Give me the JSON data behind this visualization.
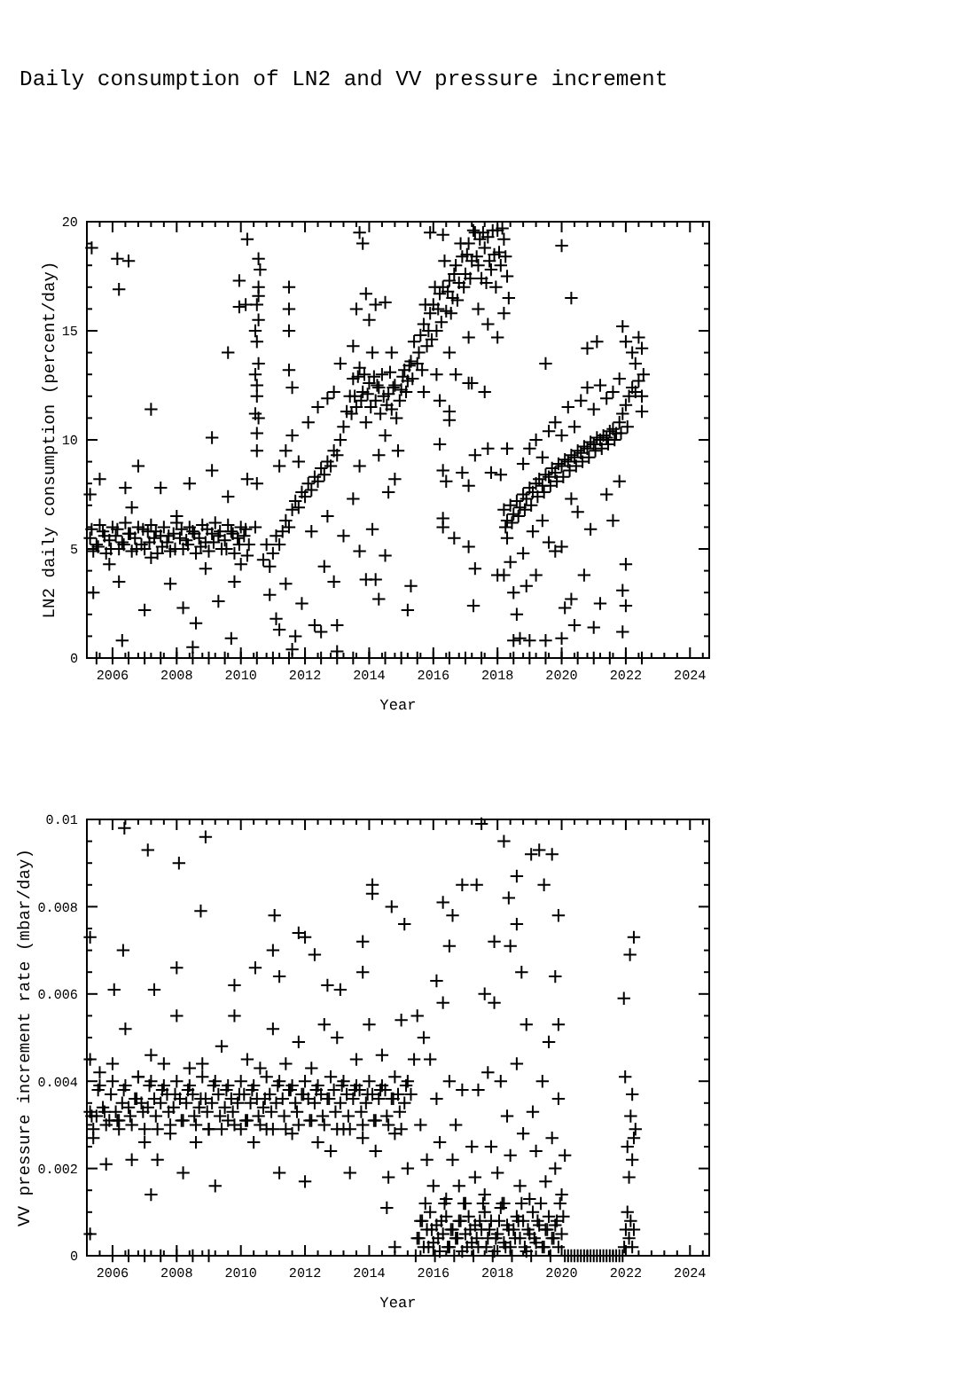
{
  "chart_data": [
    {
      "type": "scatter",
      "title": "Daily consumption of LN2 and VV pressure increment",
      "xlabel": "Year",
      "ylabel": "LN2 daily consumption (percent/day)",
      "marker": "cross",
      "color": "#000000",
      "xlim": [
        2005.2,
        2024.6
      ],
      "xticks": [
        {
          "value": 2005.6,
          "label": null
        },
        2006,
        {
          "value": 2006.4,
          "label": null
        },
        {
          "value": 2006.8,
          "label": null
        },
        {
          "value": 2007.2,
          "label": null
        },
        {
          "value": 2007.6,
          "label": null
        },
        2008,
        {
          "value": 2008.4,
          "label": null
        },
        {
          "value": 2008.8,
          "label": null
        },
        {
          "value": 2009.2,
          "label": null
        },
        {
          "value": 2009.6,
          "label": null
        },
        2010,
        {
          "value": 2010.4,
          "label": null
        },
        {
          "value": 2010.8,
          "label": null
        },
        {
          "value": 2011.2,
          "label": null
        },
        {
          "value": 2011.6,
          "label": null
        },
        2012,
        {
          "value": 2012.4,
          "label": null
        },
        {
          "value": 2012.8,
          "label": null
        },
        {
          "value": 2013.2,
          "label": null
        },
        {
          "value": 2013.6,
          "label": null
        },
        2014,
        {
          "value": 2014.4,
          "label": null
        },
        {
          "value": 2014.8,
          "label": null
        },
        {
          "value": 2015.2,
          "label": null
        },
        {
          "value": 2015.6,
          "label": null
        },
        2016,
        {
          "value": 2016.4,
          "label": null
        },
        {
          "value": 2016.8,
          "label": null
        },
        {
          "value": 2017.2,
          "label": null
        },
        {
          "value": 2017.6,
          "label": null
        },
        2018,
        {
          "value": 2018.4,
          "label": null
        },
        {
          "value": 2018.8,
          "label": null
        },
        {
          "value": 2019.2,
          "label": null
        },
        {
          "value": 2019.6,
          "label": null
        },
        2020,
        {
          "value": 2020.4,
          "label": null
        },
        {
          "value": 2020.8,
          "label": null
        },
        {
          "value": 2021.2,
          "label": null
        },
        {
          "value": 2021.6,
          "label": null
        },
        2022,
        {
          "value": 2022.4,
          "label": null
        },
        {
          "value": 2022.8,
          "label": null
        },
        {
          "value": 2023.2,
          "label": null
        },
        {
          "value": 2023.6,
          "label": null
        },
        2024,
        {
          "value": 2024.4,
          "label": null
        }
      ],
      "ylim": [
        0,
        20
      ],
      "yticks": [
        0,
        {
          "value": 1,
          "label": null
        },
        {
          "value": 2,
          "label": null
        },
        {
          "value": 3,
          "label": null
        },
        {
          "value": 4,
          "label": null
        },
        5,
        {
          "value": 6,
          "label": null
        },
        {
          "value": 7,
          "label": null
        },
        {
          "value": 8,
          "label": null
        },
        {
          "value": 9,
          "label": null
        },
        10,
        {
          "value": 11,
          "label": null
        },
        {
          "value": 12,
          "label": null
        },
        {
          "value": 13,
          "label": null
        },
        {
          "value": 14,
          "label": null
        },
        15,
        {
          "value": 16,
          "label": null
        },
        {
          "value": 17,
          "label": null
        },
        {
          "value": 18,
          "label": null
        },
        {
          "value": 19,
          "label": null
        },
        20
      ],
      "x": [
        2005.3,
        2005.5,
        2005.7,
        2005.9,
        2006.1,
        2006.3,
        2006.5,
        2006.7,
        2006.9,
        2007.1,
        2007.3,
        2007.5,
        2007.7,
        2007.9,
        2008.1,
        2008.3,
        2008.5,
        2008.7,
        2008.9,
        2009.1,
        2009.3,
        2009.5,
        2009.7,
        2009.9,
        2010.1,
        2010.25,
        2005.4,
        2005.6,
        2005.8,
        2006.0,
        2006.2,
        2006.4,
        2006.6,
        2006.8,
        2007.0,
        2007.2,
        2007.4,
        2007.6,
        2007.8,
        2008.0,
        2008.2,
        2008.4,
        2008.6,
        2008.8,
        2009.0,
        2009.2,
        2009.4,
        2009.6,
        2009.8,
        2010.0,
        2010.2,
        2005.3,
        2005.4,
        2005.6,
        2005.9,
        2006.2,
        2006.4,
        2006.6,
        2006.8,
        2007.0,
        2007.2,
        2007.5,
        2007.8,
        2008.0,
        2008.2,
        2008.4,
        2008.6,
        2008.9,
        2009.1,
        2009.3,
        2009.6,
        2009.8,
        2010.0,
        2010.2,
        2006.3,
        2008.5,
        2009.7,
        2005.35,
        2006.15,
        2006.2,
        2006.5,
        2007.2,
        2009.1,
        2009.95,
        2009.6,
        2009.95,
        2010.2,
        2010.15,
        2010.45,
        2010.5,
        2010.5,
        2010.55,
        2010.5,
        2010.55,
        2010.5,
        2010.55,
        2010.5,
        2010.55,
        2010.6,
        2010.55,
        2010.45,
        2010.5,
        2010.45,
        2010.55,
        2010.5,
        2010.45,
        2010.7,
        2010.8,
        2010.9,
        2011.0,
        2011.1,
        2011.2,
        2011.3,
        2011.4,
        2011.5,
        2011.6,
        2011.7,
        2011.8,
        2011.9,
        2012.0,
        2012.1,
        2012.2,
        2012.3,
        2012.4,
        2012.5,
        2012.6,
        2012.7,
        2012.8,
        2012.9,
        2013.0,
        2013.1,
        2013.2,
        2013.3,
        2011.2,
        2011.4,
        2011.6,
        2011.8,
        2012.1,
        2012.4,
        2012.7,
        2012.9,
        2013.1,
        2011.5,
        2011.5,
        2011.5,
        2011.5,
        2011.6,
        2010.9,
        2011.1,
        2011.2,
        2011.4,
        2011.6,
        2011.7,
        2011.9,
        2012.2,
        2012.3,
        2012.5,
        2012.7,
        2012.9,
        2013.0,
        2013.0,
        2013.2,
        2012.6,
        2013.4,
        2013.5,
        2013.6,
        2013.7,
        2013.8,
        2013.9,
        2014.0,
        2014.1,
        2014.2,
        2014.3,
        2014.4,
        2014.5,
        2014.6,
        2014.7,
        2014.8,
        2014.9,
        2015.0,
        2015.1,
        2015.2,
        2015.3,
        2015.4,
        2013.5,
        2014.0,
        2014.3,
        2014.7,
        2013.7,
        2014.5,
        2013.6,
        2013.9,
        2014.2,
        2013.45,
        2013.55,
        2013.65,
        2013.75,
        2013.85,
        2013.95,
        2014.05,
        2014.15,
        2014.25,
        2014.35,
        2014.45,
        2014.55,
        2014.65,
        2014.75,
        2014.85,
        2014.95,
        2015.05,
        2015.15,
        2015.25,
        2015.35,
        2013.5,
        2013.7,
        2013.9,
        2014.1,
        2014.2,
        2014.3,
        2014.5,
        2014.6,
        2014.8,
        2015.2,
        2015.3,
        2013.7,
        2013.8,
        2015.5,
        2015.6,
        2015.7,
        2015.8,
        2015.9,
        2016.0,
        2016.1,
        2016.2,
        2016.3,
        2016.4,
        2016.5,
        2016.6,
        2016.7,
        2016.8,
        2016.9,
        2017.0,
        2017.1,
        2017.2,
        2017.3,
        2017.4,
        2017.5,
        2017.6,
        2017.7,
        2017.8,
        2017.9,
        2018.0,
        2018.1,
        2018.2,
        2018.3,
        2018.35,
        2015.7,
        2015.9,
        2016.1,
        2016.3,
        2016.5,
        2016.7,
        2017.1,
        2017.4,
        2017.7,
        2018.0,
        2018.2,
        2016.2,
        2015.55,
        2015.65,
        2015.75,
        2015.85,
        2015.95,
        2016.05,
        2016.15,
        2016.25,
        2016.35,
        2016.45,
        2016.55,
        2016.65,
        2016.75,
        2016.85,
        2016.95,
        2017.05,
        2017.15,
        2017.25,
        2017.35,
        2017.45,
        2017.55,
        2017.65,
        2017.75,
        2017.85,
        2017.95,
        2018.05,
        2018.15,
        2018.25,
        2016.2,
        2016.3,
        2016.3,
        2016.3,
        2016.4,
        2016.65,
        2016.9,
        2017.1,
        2017.1,
        2017.3,
        2017.25,
        2017.3,
        2017.7,
        2017.8,
        2018.0,
        2017.1,
        2017.2,
        2017.6,
        2016.5,
        2016.5,
        2018.2,
        2018.3,
        2018.4,
        2018.5,
        2018.6,
        2018.7,
        2018.8,
        2018.9,
        2019.0,
        2019.1,
        2019.2,
        2019.3,
        2019.4,
        2019.5,
        2019.6,
        2019.7,
        2019.8,
        2019.9,
        2020.0,
        2020.1,
        2020.2,
        2020.3,
        2020.4,
        2020.5,
        2020.6,
        2020.7,
        2020.8,
        2020.9,
        2021.0,
        2021.1,
        2021.2,
        2021.3,
        2021.4,
        2021.5,
        2021.6,
        2021.7,
        2021.8,
        2021.9,
        2022.0,
        2022.1,
        2022.2,
        2022.3,
        2022.4,
        2022.5,
        2022.55,
        2018.25,
        2018.45,
        2018.65,
        2018.85,
        2019.05,
        2019.25,
        2019.45,
        2019.65,
        2019.85,
        2020.05,
        2020.25,
        2020.45,
        2020.65,
        2020.85,
        2021.05,
        2021.25,
        2021.45,
        2021.65,
        2021.85,
        2022.05,
        2018.8,
        2019.0,
        2019.2,
        2019.4,
        2019.6,
        2019.8,
        2020.0,
        2020.2,
        2020.4,
        2020.6,
        2020.8,
        2021.0,
        2021.2,
        2021.4,
        2021.6,
        2021.8,
        2022.0,
        2022.2,
        2022.3,
        2022.4,
        2022.5,
        2022.5,
        2021.1,
        2020.8,
        2021.9,
        2018.3,
        2018.4,
        2018.5,
        2018.6,
        2018.5,
        2018.7,
        2018.8,
        2018.9,
        2019.1,
        2019.2,
        2019.4,
        2019.6,
        2019.8,
        2020.0,
        2020.1,
        2020.3,
        2020.4,
        2020.3,
        2020.5,
        2020.7,
        2020.9,
        2021.0,
        2021.2,
        2021.4,
        2021.6,
        2021.8,
        2021.9,
        2022.0,
        2021.9,
        2022.0,
        2019.5,
        2020.0,
        2020.3,
        2018.3,
        2018.1,
        2018.2,
        2019.0,
        2019.5,
        2020.0,
        2005.5,
        2006.0,
        2006.5,
        2007.0,
        2007.5,
        2008.0,
        2008.5,
        2009.0,
        2009.5,
        2010.0,
        2010.5,
        2011.0,
        2011.5,
        2012.0,
        2012.5,
        2013.0,
        2013.5,
        2014.0,
        2014.5,
        2015.0,
        2015.5,
        2016.0,
        2016.5,
        2017.0,
        2017.5,
        2018.0,
        2018.5,
        2019.0,
        2019.5,
        2020.0,
        2020.5,
        2021.0,
        2021.5,
        2022.0,
        2022.5,
        2005.35,
        2005.55,
        2005.75,
        2005.95,
        2006.15,
        2006.35,
        2006.55,
        2006.75,
        2006.95,
        2007.15,
        2007.35,
        2007.55,
        2007.75,
        2007.95,
        2008.15,
        2008.35,
        2008.55,
        2008.75,
        2008.95,
        2009.15,
        2009.35,
        2009.55,
        2009.75,
        2009.95,
        2010.15
      ],
      "values": [
        5.5,
        5.2,
        5.8,
        5.4,
        5.6,
        5.3,
        5.7,
        5.5,
        5.2,
        5.8,
        5.5,
        5.6,
        5.3,
        5.7,
        5.5,
        5.4,
        5.8,
        5.5,
        5.3,
        5.7,
        5.6,
        5.4,
        5.8,
        5.5,
        5.6,
        5.2,
        4.9,
        6.1,
        4.8,
        6.0,
        5.0,
        6.2,
        4.9,
        6.0,
        5.0,
        6.1,
        4.8,
        6.0,
        4.9,
        6.2,
        5.0,
        6.0,
        4.8,
        6.1,
        4.9,
        6.2,
        5.0,
        6.1,
        4.8,
        6.0,
        4.7,
        7.5,
        3.0,
        8.2,
        4.3,
        3.5,
        7.8,
        6.9,
        8.8,
        2.2,
        4.6,
        7.8,
        3.4,
        6.5,
        2.3,
        8.0,
        1.6,
        4.1,
        8.6,
        2.6,
        7.4,
        3.5,
        4.3,
        8.2,
        0.8,
        0.5,
        0.9,
        18.8,
        18.3,
        16.9,
        18.2,
        11.4,
        10.1,
        16.1,
        14.0,
        17.3,
        19.2,
        16.2,
        6.0,
        8.0,
        9.5,
        11.0,
        12.5,
        13.5,
        14.5,
        15.5,
        16.2,
        17.0,
        17.8,
        18.3,
        11.2,
        10.3,
        15.0,
        16.6,
        12.0,
        13.0,
        4.5,
        5.2,
        4.2,
        4.8,
        5.6,
        5.2,
        5.8,
        6.3,
        6.0,
        6.8,
        7.2,
        6.9,
        7.6,
        7.4,
        8.0,
        7.7,
        8.3,
        8.1,
        8.7,
        8.4,
        9.0,
        8.8,
        9.5,
        9.3,
        10.0,
        10.6,
        11.3,
        8.8,
        9.5,
        10.2,
        9.0,
        10.8,
        11.5,
        11.9,
        12.2,
        13.5,
        17.0,
        16.0,
        15.0,
        13.2,
        12.4,
        2.9,
        1.8,
        1.3,
        3.4,
        0.4,
        1.0,
        2.5,
        5.8,
        1.5,
        1.2,
        6.5,
        3.5,
        1.5,
        0.3,
        5.6,
        4.2,
        12.0,
        12.8,
        11.5,
        13.3,
        12.2,
        10.8,
        12.6,
        14.0,
        11.8,
        12.4,
        13.0,
        10.2,
        12.1,
        11.4,
        12.5,
        9.5,
        12.3,
        13.2,
        12.7,
        13.6,
        14.5,
        14.3,
        15.5,
        9.3,
        14.0,
        8.8,
        16.3,
        16.0,
        16.7,
        16.2,
        11.2,
        12.0,
        12.9,
        11.8,
        13.0,
        12.1,
        11.5,
        12.9,
        12.5,
        11.2,
        12.0,
        11.6,
        13.1,
        12.4,
        11.0,
        11.8,
        12.9,
        12.2,
        13.4,
        12.8,
        7.3,
        4.9,
        3.6,
        5.9,
        3.6,
        2.7,
        4.7,
        7.6,
        8.2,
        2.2,
        3.3,
        19.5,
        19.0,
        13.5,
        14.8,
        15.3,
        14.3,
        15.8,
        16.2,
        15.0,
        16.7,
        17.0,
        15.9,
        17.3,
        16.5,
        18.0,
        17.2,
        18.4,
        17.6,
        19.0,
        18.2,
        19.5,
        18.0,
        17.4,
        18.8,
        19.3,
        17.8,
        18.5,
        19.6,
        18.0,
        19.2,
        17.5,
        16.5,
        12.2,
        19.5,
        13.0,
        19.4,
        14.0,
        13.0,
        14.7,
        16.0,
        15.3,
        14.7,
        15.8,
        11.8,
        14.0,
        13.2,
        16.2,
        15.0,
        14.6,
        17.0,
        16.0,
        15.4,
        18.2,
        16.8,
        15.8,
        17.6,
        16.4,
        19.0,
        17.0,
        18.5,
        17.4,
        19.6,
        18.4,
        19.2,
        19.5,
        17.2,
        18.2,
        19.6,
        17.0,
        18.6,
        19.7,
        18.4,
        9.8,
        8.6,
        6.4,
        6.0,
        8.1,
        5.5,
        8.5,
        7.9,
        5.1,
        4.1,
        2.4,
        9.3,
        9.6,
        8.5,
        3.8,
        12.6,
        12.6,
        12.2,
        11.3,
        10.9,
        6.8,
        6.3,
        7.0,
        6.6,
        7.2,
        6.9,
        7.5,
        7.3,
        7.8,
        7.6,
        8.0,
        8.2,
        7.9,
        8.4,
        8.3,
        8.7,
        8.5,
        8.9,
        8.8,
        9.1,
        9.0,
        9.3,
        9.2,
        9.5,
        9.4,
        9.7,
        9.6,
        9.9,
        9.8,
        10.1,
        10.0,
        10.2,
        10.1,
        10.4,
        10.5,
        10.3,
        10.8,
        11.2,
        11.6,
        12.0,
        12.4,
        12.2,
        12.7,
        12.0,
        13.0,
        6.0,
        6.2,
        6.5,
        6.8,
        7.0,
        7.4,
        7.6,
        7.9,
        8.1,
        8.3,
        8.6,
        8.8,
        9.0,
        9.2,
        9.5,
        9.6,
        9.8,
        10.0,
        10.3,
        10.6,
        8.9,
        9.6,
        10.0,
        9.2,
        10.4,
        10.8,
        10.2,
        11.5,
        10.6,
        11.8,
        12.4,
        11.4,
        12.5,
        11.9,
        12.2,
        12.8,
        14.5,
        14.0,
        13.5,
        14.7,
        14.2,
        11.3,
        14.5,
        14.2,
        15.2,
        5.5,
        4.4,
        3.0,
        2.0,
        0.8,
        0.9,
        4.8,
        3.3,
        5.8,
        3.8,
        6.3,
        5.3,
        4.9,
        5.1,
        2.3,
        7.3,
        1.5,
        2.7,
        6.7,
        3.8,
        5.9,
        1.4,
        2.5,
        7.5,
        6.3,
        8.1,
        3.1,
        2.4,
        1.2,
        4.3,
        13.5,
        18.9,
        16.5,
        9.6,
        8.4,
        3.8,
        0.8,
        0.8,
        0.9,
        0,
        0,
        0,
        0,
        0,
        0,
        0,
        0,
        0,
        0,
        0,
        0,
        0,
        0,
        0,
        0,
        0,
        0,
        0,
        0,
        0,
        0,
        0,
        0,
        0,
        0,
        0,
        0,
        0,
        0,
        0,
        0,
        0,
        0,
        0,
        5.9,
        5.1,
        5.6,
        5.0,
        5.9,
        5.2,
        5.7,
        5.0,
        5.9,
        5.3,
        5.8,
        5.1,
        5.6,
        5.0,
        5.9,
        5.2,
        5.7,
        5.1,
        5.9,
        5.3,
        5.8,
        5.0,
        5.7,
        5.2,
        5.9
      ]
    },
    {
      "type": "scatter",
      "xlabel": "Year",
      "ylabel": "VV pressure increment rate (mbar/day)",
      "marker": "cross",
      "color": "#000000",
      "xlim": [
        2005.2,
        2024.6
      ],
      "xticks": [
        {
          "value": 2005.6,
          "label": null
        },
        2006,
        {
          "value": 2006.4,
          "label": null
        },
        {
          "value": 2006.8,
          "label": null
        },
        {
          "value": 2007.2,
          "label": null
        },
        {
          "value": 2007.6,
          "label": null
        },
        2008,
        {
          "value": 2008.4,
          "label": null
        },
        {
          "value": 2008.8,
          "label": null
        },
        {
          "value": 2009.2,
          "label": null
        },
        {
          "value": 2009.6,
          "label": null
        },
        2010,
        {
          "value": 2010.4,
          "label": null
        },
        {
          "value": 2010.8,
          "label": null
        },
        {
          "value": 2011.2,
          "label": null
        },
        {
          "value": 2011.6,
          "label": null
        },
        2012,
        {
          "value": 2012.4,
          "label": null
        },
        {
          "value": 2012.8,
          "label": null
        },
        {
          "value": 2013.2,
          "label": null
        },
        {
          "value": 2013.6,
          "label": null
        },
        2014,
        {
          "value": 2014.4,
          "label": null
        },
        {
          "value": 2014.8,
          "label": null
        },
        {
          "value": 2015.2,
          "label": null
        },
        {
          "value": 2015.6,
          "label": null
        },
        2016,
        {
          "value": 2016.4,
          "label": null
        },
        {
          "value": 2016.8,
          "label": null
        },
        {
          "value": 2017.2,
          "label": null
        },
        {
          "value": 2017.6,
          "label": null
        },
        2018,
        {
          "value": 2018.4,
          "label": null
        },
        {
          "value": 2018.8,
          "label": null
        },
        {
          "value": 2019.2,
          "label": null
        },
        {
          "value": 2019.6,
          "label": null
        },
        2020,
        {
          "value": 2020.4,
          "label": null
        },
        {
          "value": 2020.8,
          "label": null
        },
        {
          "value": 2021.2,
          "label": null
        },
        {
          "value": 2021.6,
          "label": null
        },
        2022,
        {
          "value": 2022.4,
          "label": null
        },
        {
          "value": 2022.8,
          "label": null
        },
        {
          "value": 2023.2,
          "label": null
        },
        {
          "value": 2023.6,
          "label": null
        },
        2024,
        {
          "value": 2024.4,
          "label": null
        }
      ],
      "ylim": [
        0,
        0.01
      ],
      "yticks": [
        0,
        {
          "value": 0.0005,
          "label": null
        },
        {
          "value": 0.001,
          "label": null
        },
        {
          "value": 0.0015,
          "label": null
        },
        0.002,
        {
          "value": 0.0025,
          "label": null
        },
        {
          "value": 0.003,
          "label": null
        },
        {
          "value": 0.0035,
          "label": null
        },
        0.004,
        {
          "value": 0.0045,
          "label": null
        },
        {
          "value": 0.005,
          "label": null
        },
        {
          "value": 0.0055,
          "label": null
        },
        0.006,
        {
          "value": 0.0065,
          "label": null
        },
        {
          "value": 0.007,
          "label": null
        },
        {
          "value": 0.0075,
          "label": null
        },
        0.008,
        {
          "value": 0.0085,
          "label": null
        },
        {
          "value": 0.009,
          "label": null
        },
        {
          "value": 0.0095,
          "label": null
        },
        0.01
      ],
      "x": [
        2005.3,
        2005.5,
        2005.7,
        2005.9,
        2006.1,
        2006.3,
        2006.5,
        2006.7,
        2006.9,
        2007.1,
        2007.3,
        2007.5,
        2007.7,
        2007.9,
        2008.1,
        2008.3,
        2008.5,
        2008.7,
        2008.9,
        2009.1,
        2009.3,
        2009.5,
        2009.7,
        2009.9,
        2010.1,
        2010.3,
        2010.5,
        2010.7,
        2010.9,
        2011.1,
        2011.3,
        2011.5,
        2011.7,
        2011.9,
        2012.1,
        2012.3,
        2012.5,
        2012.7,
        2012.9,
        2013.1,
        2013.3,
        2013.5,
        2013.7,
        2013.9,
        2014.1,
        2014.3,
        2014.5,
        2014.7,
        2014.9,
        2015.1,
        2015.3,
        2005.4,
        2005.6,
        2005.8,
        2006.0,
        2006.2,
        2006.4,
        2006.6,
        2006.8,
        2007.0,
        2007.2,
        2007.4,
        2007.6,
        2007.8,
        2008.0,
        2008.2,
        2008.4,
        2008.6,
        2008.8,
        2009.0,
        2009.2,
        2009.4,
        2009.6,
        2009.8,
        2010.0,
        2010.2,
        2010.4,
        2010.6,
        2010.8,
        2011.0,
        2011.2,
        2011.4,
        2011.6,
        2011.8,
        2012.0,
        2012.2,
        2012.4,
        2012.6,
        2012.8,
        2013.0,
        2013.2,
        2013.4,
        2013.6,
        2013.8,
        2014.0,
        2014.2,
        2014.4,
        2014.6,
        2014.8,
        2015.0,
        2015.2,
        2005.3,
        2005.4,
        2005.6,
        2005.8,
        2006.0,
        2006.2,
        2006.4,
        2006.6,
        2006.8,
        2007.0,
        2007.2,
        2007.4,
        2007.6,
        2007.8,
        2008.0,
        2008.2,
        2008.4,
        2008.6,
        2008.8,
        2009.0,
        2009.2,
        2009.4,
        2009.6,
        2009.8,
        2010.0,
        2010.2,
        2010.4,
        2010.6,
        2010.8,
        2011.0,
        2011.2,
        2011.4,
        2011.6,
        2011.8,
        2012.0,
        2012.2,
        2012.4,
        2012.6,
        2012.8,
        2013.0,
        2013.2,
        2013.4,
        2013.6,
        2013.8,
        2014.0,
        2014.2,
        2014.4,
        2014.6,
        2014.8,
        2015.0,
        2015.2,
        2015.4,
        2005.3,
        2005.3,
        2006.05,
        2006.37,
        2006.33,
        2007.3,
        2007.1,
        2007.2,
        2008.07,
        2008.0,
        2008.75,
        2008.9,
        2009.8,
        2010.45,
        2011.0,
        2011.05,
        2011.2,
        2011.8,
        2012.0,
        2012.3,
        2012.7,
        2013.1,
        2013.8,
        2013.8,
        2014.1,
        2014.1,
        2014.7,
        2015.1,
        2014.8,
        2014.55,
        2006.0,
        2006.5,
        2007.0,
        2007.5,
        2008.0,
        2008.5,
        2009.0,
        2015.5,
        2015.6,
        2015.7,
        2015.8,
        2015.9,
        2016.0,
        2016.1,
        2016.2,
        2016.3,
        2016.4,
        2016.5,
        2016.6,
        2016.7,
        2016.8,
        2016.9,
        2017.0,
        2017.1,
        2017.2,
        2017.3,
        2017.4,
        2017.5,
        2017.6,
        2017.7,
        2017.8,
        2017.9,
        2018.0,
        2018.1,
        2018.2,
        2018.3,
        2018.4,
        2018.5,
        2018.6,
        2018.7,
        2018.8,
        2018.9,
        2019.0,
        2019.1,
        2019.2,
        2019.3,
        2019.4,
        2019.5,
        2019.6,
        2019.7,
        2019.8,
        2019.9,
        2020.0,
        2020.05,
        2015.45,
        2015.55,
        2015.65,
        2015.75,
        2015.85,
        2015.95,
        2016.05,
        2016.15,
        2016.25,
        2016.35,
        2016.45,
        2016.55,
        2016.65,
        2016.75,
        2016.85,
        2016.95,
        2017.05,
        2017.15,
        2017.25,
        2017.35,
        2017.45,
        2017.55,
        2017.65,
        2017.75,
        2017.85,
        2017.95,
        2018.05,
        2018.15,
        2018.25,
        2018.35,
        2018.45,
        2018.55,
        2018.65,
        2018.75,
        2018.85,
        2018.95,
        2019.05,
        2019.15,
        2019.25,
        2019.35,
        2019.45,
        2019.55,
        2019.65,
        2019.75,
        2019.85,
        2019.95,
        2015.5,
        2015.6,
        2015.7,
        2015.8,
        2015.9,
        2016.0,
        2016.1,
        2016.2,
        2016.3,
        2016.4,
        2016.5,
        2016.6,
        2016.7,
        2016.8,
        2016.9,
        2017.0,
        2017.2,
        2017.3,
        2017.4,
        2017.6,
        2017.7,
        2017.8,
        2017.9,
        2018.0,
        2018.1,
        2018.2,
        2018.3,
        2018.4,
        2018.6,
        2018.7,
        2018.8,
        2018.9,
        2019.0,
        2019.1,
        2019.2,
        2019.4,
        2019.5,
        2019.6,
        2019.7,
        2019.8,
        2019.9,
        2020.0,
        2020.1,
        2016.1,
        2016.3,
        2016.5,
        2016.6,
        2016.9,
        2017.35,
        2017.5,
        2017.6,
        2017.9,
        2018.2,
        2018.35,
        2018.4,
        2018.6,
        2018.6,
        2018.75,
        2019.05,
        2019.3,
        2019.45,
        2019.7,
        2019.8,
        2019.9,
        2019.9,
        2020.1,
        2020.2,
        2020.3,
        2020.4,
        2020.5,
        2020.6,
        2020.7,
        2020.8,
        2020.9,
        2021.0,
        2021.1,
        2021.2,
        2021.3,
        2021.4,
        2021.5,
        2021.6,
        2021.7,
        2021.8,
        2021.9,
        2021.95,
        2022.0,
        2022.05,
        2022.1,
        2022.15,
        2022.2,
        2022.25,
        2022.05,
        2022.1,
        2022.15,
        2022.2,
        2022.25,
        2022.3,
        2021.94,
        2021.98,
        2022.13,
        2022.25,
        2022.2,
        2005.35,
        2005.55,
        2005.75,
        2005.95,
        2006.15,
        2006.35,
        2006.55,
        2006.75,
        2006.95,
        2007.15,
        2007.35,
        2007.55,
        2007.75,
        2007.95,
        2008.15,
        2008.35,
        2008.55,
        2008.75,
        2008.95,
        2009.15,
        2009.35,
        2009.55,
        2009.75,
        2009.95,
        2010.15,
        2010.35,
        2010.55,
        2010.75,
        2010.95,
        2011.15,
        2011.35,
        2011.55,
        2011.75,
        2011.95,
        2012.15,
        2012.35,
        2012.55,
        2012.75,
        2012.95,
        2013.15,
        2013.35,
        2013.55,
        2013.75,
        2013.95,
        2014.15,
        2014.35,
        2014.55,
        2014.75,
        2014.95,
        2015.15
      ],
      "values": [
        0.0033,
        0.0032,
        0.0034,
        0.0031,
        0.0033,
        0.0035,
        0.0034,
        0.0036,
        0.0035,
        0.0034,
        0.0036,
        0.0035,
        0.0037,
        0.0034,
        0.0036,
        0.0035,
        0.0037,
        0.0034,
        0.0036,
        0.0035,
        0.0037,
        0.0034,
        0.0036,
        0.0035,
        0.0037,
        0.0035,
        0.0036,
        0.0034,
        0.0037,
        0.0035,
        0.0036,
        0.0038,
        0.0035,
        0.0037,
        0.0036,
        0.0035,
        0.0037,
        0.0036,
        0.0038,
        0.0035,
        0.0037,
        0.0036,
        0.0038,
        0.0035,
        0.0037,
        0.0036,
        0.0038,
        0.0036,
        0.0037,
        0.0035,
        0.0037,
        0.0029,
        0.0039,
        0.003,
        0.004,
        0.0031,
        0.0039,
        0.003,
        0.0041,
        0.0029,
        0.004,
        0.0029,
        0.0039,
        0.003,
        0.004,
        0.0031,
        0.0039,
        0.003,
        0.0041,
        0.0029,
        0.004,
        0.0029,
        0.0039,
        0.003,
        0.004,
        0.0031,
        0.0039,
        0.003,
        0.0041,
        0.0029,
        0.004,
        0.0029,
        0.0039,
        0.003,
        0.004,
        0.0031,
        0.0039,
        0.003,
        0.0041,
        0.0029,
        0.004,
        0.0029,
        0.0039,
        0.003,
        0.004,
        0.0031,
        0.0039,
        0.003,
        0.0041,
        0.0029,
        0.004,
        0.0045,
        0.0027,
        0.0042,
        0.0021,
        0.0044,
        0.0029,
        0.0052,
        0.0022,
        0.0041,
        0.0026,
        0.0046,
        0.0022,
        0.0044,
        0.0028,
        0.0055,
        0.0019,
        0.0043,
        0.0026,
        0.0044,
        0.0029,
        0.0016,
        0.0048,
        0.0031,
        0.0055,
        0.0029,
        0.0045,
        0.0026,
        0.0043,
        0.0029,
        0.0052,
        0.0019,
        0.0044,
        0.0028,
        0.0049,
        0.0017,
        0.0043,
        0.0026,
        0.0053,
        0.0024,
        0.005,
        0.0029,
        0.0019,
        0.0045,
        0.0027,
        0.0053,
        0.0024,
        0.0046,
        0.0018,
        0.0028,
        0.0054,
        0.002,
        0.0045,
        0.0073,
        0.0005,
        0.0061,
        0.0098,
        0.007,
        0.0061,
        0.0093,
        0.0014,
        0.009,
        0.0066,
        0.0079,
        0.0096,
        0.0062,
        0.0066,
        0.007,
        0.0078,
        0.0064,
        0.0074,
        0.0073,
        0.0069,
        0.0062,
        0.0061,
        0.0072,
        0.0065,
        0.0085,
        0.0083,
        0.008,
        0.0076,
        0.0002,
        0.0011,
        0,
        0,
        0,
        0,
        0,
        0,
        0,
        0.0004,
        0.0008,
        0.0002,
        0.0006,
        0.001,
        0.0003,
        0.0007,
        0.0001,
        0.0005,
        0.0009,
        0.0002,
        0.0006,
        0.0004,
        0.0008,
        0.0001,
        0.0005,
        0.0009,
        0.0003,
        0.0007,
        0.0002,
        0.0006,
        0.001,
        0.0004,
        0.0008,
        0.0001,
        0.0005,
        0.0011,
        0.0003,
        0.0007,
        0.0002,
        0.0006,
        0.0009,
        0.0004,
        0.0008,
        0.0001,
        0.0005,
        0.001,
        0.0003,
        0.0007,
        0.0002,
        0.0006,
        0.0009,
        0.0004,
        0.0007,
        0.0002,
        0.0005,
        0.0009,
        0,
        0.0004,
        0.0008,
        0.0012,
        0.0002,
        0.0006,
        0,
        0.0004,
        0.0008,
        0.0012,
        0.0002,
        0.0006,
        0,
        0.0004,
        0.0008,
        0.0012,
        0.0002,
        0.0006,
        0,
        0.0004,
        0.0008,
        0.0012,
        0.0002,
        0.0006,
        0,
        0.0004,
        0.0008,
        0.0012,
        0.0002,
        0.0006,
        0,
        0.0004,
        0.0008,
        0.0012,
        0.0002,
        0.0006,
        0,
        0.0004,
        0.0008,
        0.0012,
        0.0002,
        0.0006,
        0,
        0.0004,
        0.0008,
        0.0012,
        0.0055,
        0.003,
        0.005,
        0.0022,
        0.0045,
        0.0016,
        0.0036,
        0.0026,
        0.0058,
        0.0013,
        0.004,
        0.0022,
        0.003,
        0.0016,
        0.0038,
        0.0012,
        0.0025,
        0.0018,
        0.0038,
        0.0014,
        0.0042,
        0.0025,
        0.0058,
        0.0019,
        0.004,
        0.0012,
        0.0032,
        0.0023,
        0.0044,
        0.0016,
        0.0028,
        0.0053,
        0.0013,
        0.0033,
        0.0024,
        0.004,
        0.0017,
        0.0049,
        0.0027,
        0.002,
        0.0036,
        0.0014,
        0.0023,
        0.0063,
        0.0081,
        0.0071,
        0.0078,
        0.0085,
        0.0085,
        0.0099,
        0.006,
        0.0072,
        0.0095,
        0.0082,
        0.0071,
        0.0087,
        0.0076,
        0.0065,
        0.0092,
        0.0093,
        0.0085,
        0.0092,
        0.0064,
        0.0078,
        0.0053,
        0,
        0,
        0,
        0,
        0,
        0,
        0,
        0,
        0,
        0,
        0,
        0,
        0,
        0,
        0,
        0,
        0,
        0,
        0,
        0.0002,
        0.0006,
        0.001,
        0.0004,
        0.0008,
        0.0002,
        0.0006,
        0.0025,
        0.0018,
        0.0032,
        0.0022,
        0.0027,
        0.0029,
        0.0059,
        0.0041,
        0.0069,
        0.0073,
        0.0037,
        0.0032,
        0.0038,
        0.0033,
        0.0037,
        0.0031,
        0.0038,
        0.0032,
        0.0036,
        0.0033,
        0.0039,
        0.0032,
        0.0038,
        0.0033,
        0.0037,
        0.0031,
        0.0038,
        0.0032,
        0.0036,
        0.0033,
        0.0039,
        0.0032,
        0.0038,
        0.0033,
        0.0037,
        0.0031,
        0.0038,
        0.0032,
        0.0036,
        0.0033,
        0.0039,
        0.0032,
        0.0038,
        0.0033,
        0.0037,
        0.0031,
        0.0038,
        0.0032,
        0.0036,
        0.0033,
        0.0039,
        0.0032,
        0.0038,
        0.0033,
        0.0037,
        0.0031,
        0.0038,
        0.0032,
        0.0036,
        0.0033,
        0.0039
      ]
    }
  ]
}
